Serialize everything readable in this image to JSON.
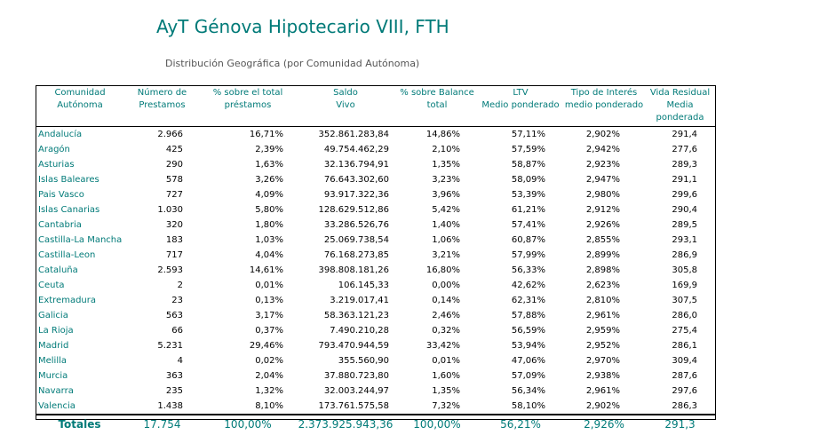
{
  "title": "AyT Génova Hipotecario VIII, FTH",
  "subtitle": "Distribución Geográfica (por Comunidad Autónoma)",
  "accent_color": "#007a78",
  "headers": [
    {
      "line1": "Comunidad",
      "line2": "Autónoma"
    },
    {
      "line1": "Número de",
      "line2": "Prestamos"
    },
    {
      "line1": "% sobre el total",
      "line2": "préstamos"
    },
    {
      "line1": "Saldo",
      "line2": "Vivo"
    },
    {
      "line1": "% sobre Balance",
      "line2": "total"
    },
    {
      "line1": "LTV",
      "line2": "Medio ponderado"
    },
    {
      "line1": "Tipo de Interés",
      "line2": "medio ponderado"
    },
    {
      "line1": "Vida Residual",
      "line2": "Media ponderada"
    }
  ],
  "rows": [
    [
      "Andalucía",
      "2.966",
      "16,71%",
      "352.861.283,84",
      "14,86%",
      "57,11%",
      "2,902%",
      "291,4"
    ],
    [
      "Aragón",
      "425",
      "2,39%",
      "49.754.462,29",
      "2,10%",
      "57,59%",
      "2,942%",
      "277,6"
    ],
    [
      "Asturias",
      "290",
      "1,63%",
      "32.136.794,91",
      "1,35%",
      "58,87%",
      "2,923%",
      "289,3"
    ],
    [
      "Islas Baleares",
      "578",
      "3,26%",
      "76.643.302,60",
      "3,23%",
      "58,09%",
      "2,947%",
      "291,1"
    ],
    [
      "Pais Vasco",
      "727",
      "4,09%",
      "93.917.322,36",
      "3,96%",
      "53,39%",
      "2,980%",
      "299,6"
    ],
    [
      "Islas Canarias",
      "1.030",
      "5,80%",
      "128.629.512,86",
      "5,42%",
      "61,21%",
      "2,912%",
      "290,4"
    ],
    [
      "Cantabria",
      "320",
      "1,80%",
      "33.286.526,76",
      "1,40%",
      "57,41%",
      "2,926%",
      "289,5"
    ],
    [
      "Castilla-La Mancha",
      "183",
      "1,03%",
      "25.069.738,54",
      "1,06%",
      "60,87%",
      "2,855%",
      "293,1"
    ],
    [
      "Castilla-Leon",
      "717",
      "4,04%",
      "76.168.273,85",
      "3,21%",
      "57,99%",
      "2,899%",
      "286,9"
    ],
    [
      "Cataluña",
      "2.593",
      "14,61%",
      "398.808.181,26",
      "16,80%",
      "56,33%",
      "2,898%",
      "305,8"
    ],
    [
      "Ceuta",
      "2",
      "0,01%",
      "106.145,33",
      "0,00%",
      "42,62%",
      "2,623%",
      "169,9"
    ],
    [
      "Extremadura",
      "23",
      "0,13%",
      "3.219.017,41",
      "0,14%",
      "62,31%",
      "2,810%",
      "307,5"
    ],
    [
      "Galicia",
      "563",
      "3,17%",
      "58.363.121,23",
      "2,46%",
      "57,88%",
      "2,961%",
      "286,0"
    ],
    [
      "La Rioja",
      "66",
      "0,37%",
      "7.490.210,28",
      "0,32%",
      "56,59%",
      "2,959%",
      "275,4"
    ],
    [
      "Madrid",
      "5.231",
      "29,46%",
      "793.470.944,59",
      "33,42%",
      "53,94%",
      "2,952%",
      "286,1"
    ],
    [
      "Melilla",
      "4",
      "0,02%",
      "355.560,90",
      "0,01%",
      "47,06%",
      "2,970%",
      "309,4"
    ],
    [
      "Murcia",
      "363",
      "2,04%",
      "37.880.723,80",
      "1,60%",
      "57,09%",
      "2,938%",
      "287,6"
    ],
    [
      "Navarra",
      "235",
      "1,32%",
      "32.003.244,97",
      "1,35%",
      "56,34%",
      "2,961%",
      "297,6"
    ],
    [
      "Valencia",
      "1.438",
      "8,10%",
      "173.761.575,58",
      "7,32%",
      "58,10%",
      "2,902%",
      "286,3"
    ]
  ],
  "totals": [
    "Totales",
    "17.754",
    "100,00%",
    "2.373.925.943,36",
    "100,00%",
    "56,21%",
    "2,926%",
    "291,3"
  ]
}
